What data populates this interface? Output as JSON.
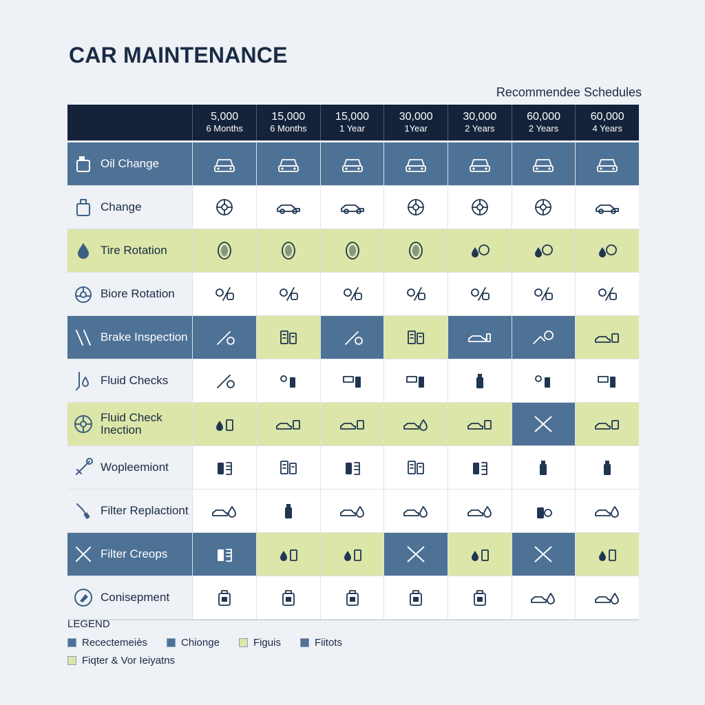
{
  "title": "CAR MAINTENANCE",
  "subtitle": "Recommendee Schedules",
  "columns": [
    {
      "miles": "5,000",
      "time": "6 Months"
    },
    {
      "miles": "15,000",
      "time": "6 Months"
    },
    {
      "miles": "15,000",
      "time": "1 Year"
    },
    {
      "miles": "30,000",
      "time": "1Year"
    },
    {
      "miles": "30,000",
      "time": "2 Years"
    },
    {
      "miles": "60,000",
      "time": "2 Years"
    },
    {
      "miles": "60,000",
      "time": "4 Years"
    }
  ],
  "rows": [
    {
      "label": "Oil Change",
      "icon": "oil-can-icon",
      "label_bg": "blue",
      "cells": [
        [
          "blue",
          "car-front-icon"
        ],
        [
          "blue",
          "car-front-icon"
        ],
        [
          "blue",
          "car-front-icon"
        ],
        [
          "blue",
          "car-front-icon"
        ],
        [
          "blue",
          "car-front-icon"
        ],
        [
          "blue",
          "car-front-icon"
        ],
        [
          "blue",
          "car-front-icon"
        ]
      ]
    },
    {
      "label": "Change",
      "icon": "canister-icon",
      "label_bg": "light",
      "cells": [
        [
          "white",
          "wheel-icon"
        ],
        [
          "white",
          "car-side-icon"
        ],
        [
          "white",
          "car-side-icon"
        ],
        [
          "white",
          "wheel-icon"
        ],
        [
          "white",
          "wheel-icon"
        ],
        [
          "white",
          "wheel-icon"
        ],
        [
          "white",
          "car-side-icon"
        ]
      ]
    },
    {
      "label": "Tire Rotation",
      "icon": "oil-drop-icon",
      "label_bg": "green",
      "cells": [
        [
          "green",
          "tire-icon"
        ],
        [
          "green",
          "tire-icon"
        ],
        [
          "green",
          "tire-icon"
        ],
        [
          "green",
          "tire-icon"
        ],
        [
          "green",
          "drops-icon"
        ],
        [
          "green",
          "drops-icon"
        ],
        [
          "green",
          "drops-icon"
        ]
      ]
    },
    {
      "label": "Biore Rotation",
      "icon": "steering-wheel-icon",
      "label_bg": "light",
      "cells": [
        [
          "white",
          "gears-icon"
        ],
        [
          "white",
          "gears-icon"
        ],
        [
          "white",
          "gears-icon"
        ],
        [
          "white",
          "gears-icon"
        ],
        [
          "white",
          "gears-icon"
        ],
        [
          "white",
          "gears-icon"
        ],
        [
          "white",
          "gears-icon"
        ]
      ]
    },
    {
      "label": "Brake Inspection",
      "icon": "tools-icon",
      "label_bg": "blue",
      "cells": [
        [
          "blue",
          "wrench-icon"
        ],
        [
          "green",
          "fuse-box-icon"
        ],
        [
          "blue",
          "wrench-icon"
        ],
        [
          "green",
          "fuse-box-icon"
        ],
        [
          "blue",
          "car-spray-icon"
        ],
        [
          "blue",
          "car-wheel-icon"
        ],
        [
          "green",
          "car-box-icon"
        ]
      ]
    },
    {
      "label": "Fluid Checks",
      "icon": "dipstick-icon",
      "label_bg": "light",
      "cells": [
        [
          "white",
          "wrench-icon"
        ],
        [
          "white",
          "bottle-gear-icon"
        ],
        [
          "white",
          "pump-icon"
        ],
        [
          "white",
          "pump-icon"
        ],
        [
          "white",
          "bottle-icon"
        ],
        [
          "white",
          "bottle-gear-icon"
        ],
        [
          "white",
          "pump-icon"
        ]
      ]
    },
    {
      "label": "Fluid Check Inection",
      "icon": "wheel-icon",
      "label_bg": "green",
      "cells": [
        [
          "green",
          "drop-battery-icon"
        ],
        [
          "green",
          "car-box-icon"
        ],
        [
          "green",
          "car-box-icon"
        ],
        [
          "green",
          "car-drop-icon"
        ],
        [
          "green",
          "car-box-icon"
        ],
        [
          "blue",
          "cross-icon"
        ],
        [
          "green",
          "car-box-icon"
        ]
      ]
    },
    {
      "label": "Wopleemiont",
      "icon": "wiper-icon",
      "label_bg": "light",
      "cells": [
        [
          "white",
          "filter-icon"
        ],
        [
          "white",
          "fuse-box-icon"
        ],
        [
          "white",
          "filter-icon"
        ],
        [
          "white",
          "fuse-box-icon"
        ],
        [
          "white",
          "filter-icon"
        ],
        [
          "white",
          "bottle-icon"
        ],
        [
          "white",
          "bottle-icon"
        ]
      ]
    },
    {
      "label": "Filter Replactiont",
      "icon": "spark-plug-icon",
      "label_bg": "light",
      "cells": [
        [
          "white",
          "car-drop-icon"
        ],
        [
          "white",
          "bottle-icon"
        ],
        [
          "white",
          "car-drop-icon"
        ],
        [
          "white",
          "car-drop-icon"
        ],
        [
          "white",
          "car-drop-icon"
        ],
        [
          "white",
          "spray-can-icon"
        ],
        [
          "white",
          "car-drop-icon"
        ]
      ]
    },
    {
      "label": "Filter Creops",
      "icon": "crossed-tools-icon",
      "label_bg": "blue",
      "cells": [
        [
          "blue",
          "filter-icon"
        ],
        [
          "green",
          "drop-battery-icon"
        ],
        [
          "green",
          "drop-battery-icon"
        ],
        [
          "blue",
          "cross-icon"
        ],
        [
          "green",
          "drop-battery-icon"
        ],
        [
          "blue",
          "cross-icon"
        ],
        [
          "green",
          "drop-battery-icon"
        ]
      ]
    },
    {
      "label": "Conisepment",
      "icon": "wrench-badge-icon",
      "label_bg": "light",
      "cells": [
        [
          "white",
          "jerrycan-icon"
        ],
        [
          "white",
          "jerrycan-icon"
        ],
        [
          "white",
          "jerrycan-icon"
        ],
        [
          "white",
          "jerrycan-icon"
        ],
        [
          "white",
          "jerrycan-icon"
        ],
        [
          "white",
          "car-drop-icon"
        ],
        [
          "white",
          "car-drop-icon"
        ]
      ]
    }
  ],
  "legend": {
    "title": "LEGEND",
    "items": [
      {
        "label": "Recectemeiès",
        "color": "#4e7196"
      },
      {
        "label": "Chionge",
        "color": "#4e7196"
      },
      {
        "label": "Figuis",
        "color": "#dbe6a8"
      },
      {
        "label": "Fiitots",
        "color": "#4e7196"
      },
      {
        "label": "Fiqter & Vor Ieiyatns",
        "color": "#dbe6a8"
      }
    ]
  }
}
